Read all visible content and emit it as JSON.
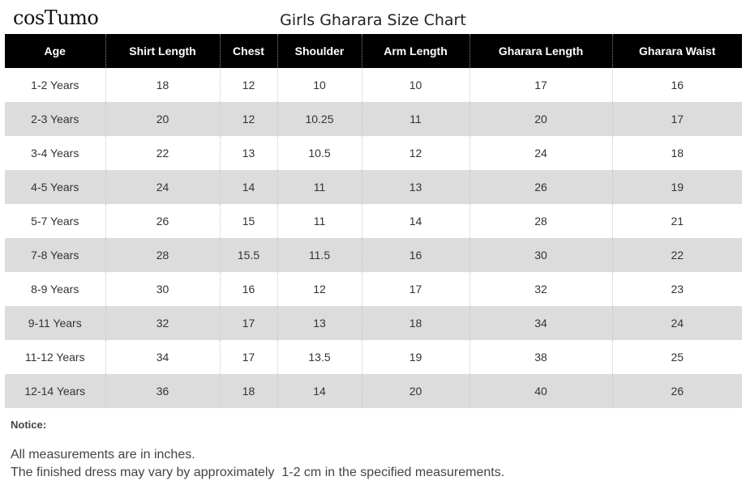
{
  "brand": {
    "logo_text": "cosTumo"
  },
  "title": "Girls Gharara Size Chart",
  "table": {
    "headers": [
      "Age",
      "Shirt Length",
      "Chest",
      "Shoulder",
      "Arm Length",
      "Gharara Length",
      "Gharara Waist"
    ],
    "rows": [
      [
        "1-2 Years",
        "18",
        "12",
        "10",
        "10",
        "17",
        "16"
      ],
      [
        "2-3 Years",
        "20",
        "12",
        "10.25",
        "11",
        "20",
        "17"
      ],
      [
        "3-4 Years",
        "22",
        "13",
        "10.5",
        "12",
        "24",
        "18"
      ],
      [
        "4-5 Years",
        "24",
        "14",
        "11",
        "13",
        "26",
        "19"
      ],
      [
        "5-7 Years",
        "26",
        "15",
        "11",
        "14",
        "28",
        "21"
      ],
      [
        "7-8 Years",
        "28",
        "15.5",
        "11.5",
        "16",
        "30",
        "22"
      ],
      [
        "8-9 Years",
        "30",
        "16",
        "12",
        "17",
        "32",
        "23"
      ],
      [
        "9-11 Years",
        "32",
        "17",
        "13",
        "18",
        "34",
        "24"
      ],
      [
        "11-12 Years",
        "34",
        "17",
        "13.5",
        "19",
        "38",
        "25"
      ],
      [
        "12-14 Years",
        "36",
        "18",
        "14",
        "20",
        "40",
        "26"
      ]
    ]
  },
  "notice": {
    "title": "Notice:",
    "lines": [
      "All measurements are in inches.",
      "The finished dress may vary by approximately  1-2 cm in the specified measurements."
    ]
  }
}
